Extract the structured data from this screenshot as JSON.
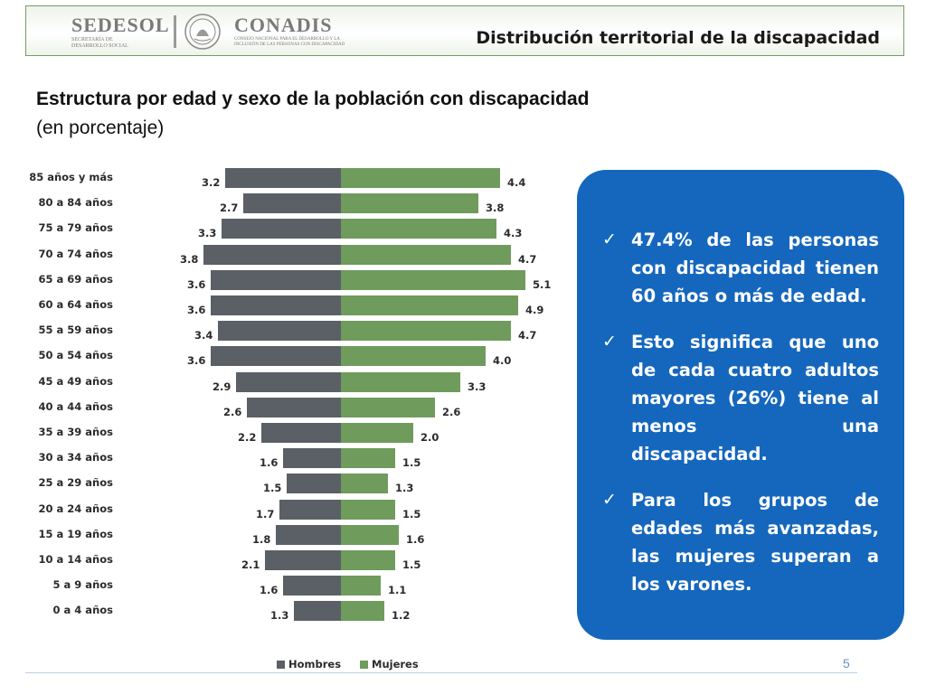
{
  "header": {
    "logo1": {
      "name": "SEDESOL",
      "sub": [
        "SECRETARÍA DE",
        "DESARROLLO SOCIAL"
      ]
    },
    "logo2": {
      "name": "CONADIS",
      "sub": [
        "CONSEJO NACIONAL PARA EL DESARROLLO Y LA",
        "INCLUSIÓN DE LAS PERSONAS CON DISCAPACIDAD"
      ]
    },
    "title": "Distribución territorial de la discapacidad"
  },
  "slide": {
    "title": "Estructura por edad y sexo de la población con discapacidad",
    "subtitle": "(en porcentaje)",
    "page_number": "5"
  },
  "colors": {
    "hombres": "#5b6066",
    "mujeres": "#6f9b5c",
    "panel": "#1567bd"
  },
  "chart_data": {
    "type": "bar",
    "orientation": "horizontal",
    "title": "",
    "categories": [
      "85 años y más",
      "80 a 84 años",
      "75 a 79 años",
      "70 a 74 años",
      "65 a 69 años",
      "60 a 64 años",
      "55 a 59 años",
      "50 a 54 años",
      "45 a 49 años",
      "40 a 44 años",
      "35 a 39 años",
      "30 a 34 años",
      "25 a 29 años",
      "20 a 24 años",
      "15 a 19 años",
      "10 a 14 años",
      "5 a 9 años",
      "0 a 4 años"
    ],
    "series": [
      {
        "name": "Hombres",
        "color": "#5b6066",
        "values": [
          3.2,
          2.7,
          3.3,
          3.8,
          3.6,
          3.6,
          3.4,
          3.6,
          2.9,
          2.6,
          2.2,
          1.6,
          1.5,
          1.7,
          1.8,
          2.1,
          1.6,
          1.3
        ]
      },
      {
        "name": "Mujeres",
        "color": "#6f9b5c",
        "values": [
          4.4,
          3.8,
          4.3,
          4.7,
          5.1,
          4.9,
          4.7,
          4.0,
          3.3,
          2.6,
          2.0,
          1.5,
          1.3,
          1.5,
          1.6,
          1.5,
          1.1,
          1.2
        ]
      }
    ],
    "legend_position": "bottom",
    "grid": false
  },
  "panel": {
    "bullets": [
      "47.4% de las personas con discapacidad tienen 60 años o más de edad.",
      "Esto significa que uno de cada cuatro adultos mayores (26%) tiene al menos una discapacidad.",
      "Para los grupos de edades más avanzadas, las mujeres superan a los varones."
    ]
  }
}
